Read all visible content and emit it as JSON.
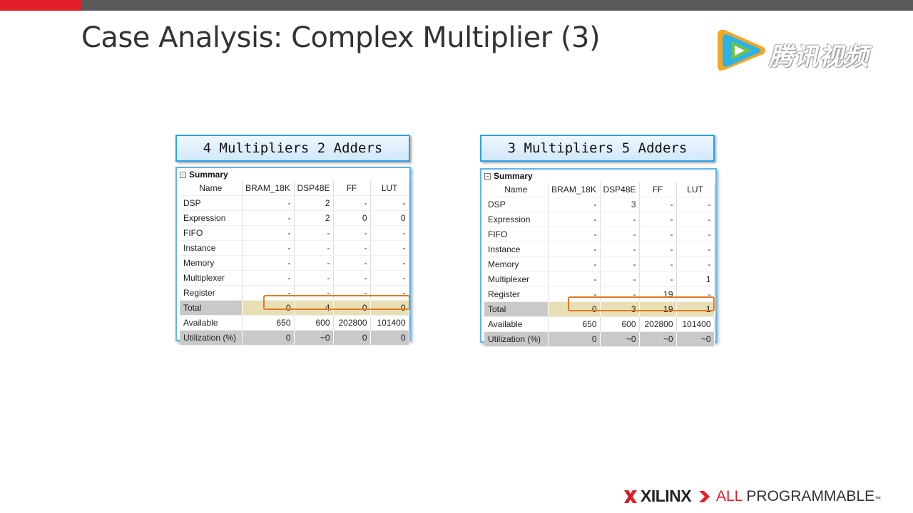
{
  "slide": {
    "title": "Case Analysis: Complex Multiplier (3)"
  },
  "brand": {
    "watermark_text": "腾讯视频",
    "footer_company": "XILINX",
    "footer_tag_all": "ALL",
    "footer_tag_rest": " PROGRAMMABLE",
    "footer_tm": "™",
    "colors": {
      "accent_red": "#e3202a",
      "topbar": "#5b5b5b",
      "highlight": "#e07a22",
      "box_border": "#2aa2e3"
    }
  },
  "panels": [
    {
      "label": "4 Multipliers 2 Adders",
      "summary_title": "Summary",
      "columns": [
        "Name",
        "BRAM_18K",
        "DSP48E",
        "FF",
        "LUT"
      ],
      "rows": [
        [
          "DSP",
          "-",
          "2",
          "-",
          "-"
        ],
        [
          "Expression",
          "-",
          "2",
          "0",
          "0"
        ],
        [
          "FIFO",
          "-",
          "-",
          "-",
          "-"
        ],
        [
          "Instance",
          "-",
          "-",
          "-",
          "-"
        ],
        [
          "Memory",
          "-",
          "-",
          "-",
          "-"
        ],
        [
          "Multiplexer",
          "-",
          "-",
          "-",
          "-"
        ],
        [
          "Register",
          "-",
          "-",
          "-",
          "-"
        ]
      ],
      "total": [
        "Total",
        "0",
        "4",
        "0",
        "0"
      ],
      "available": [
        "Available",
        "650",
        "600",
        "202800",
        "101400"
      ],
      "utilization": [
        "Utilization (%)",
        "0",
        "~0",
        "0",
        "0"
      ]
    },
    {
      "label": "3 Multipliers 5 Adders",
      "summary_title": "Summary",
      "columns": [
        "Name",
        "BRAM_18K",
        "DSP48E",
        "FF",
        "LUT"
      ],
      "rows": [
        [
          "DSP",
          "-",
          "3",
          "-",
          "-"
        ],
        [
          "Expression",
          "-",
          "-",
          "-",
          "-"
        ],
        [
          "FIFO",
          "-",
          "-",
          "-",
          "-"
        ],
        [
          "Instance",
          "-",
          "-",
          "-",
          "-"
        ],
        [
          "Memory",
          "-",
          "-",
          "-",
          "-"
        ],
        [
          "Multiplexer",
          "-",
          "-",
          "-",
          "1"
        ],
        [
          "Register",
          "-",
          "-",
          "19",
          "-"
        ]
      ],
      "total": [
        "Total",
        "0",
        "3",
        "19",
        "1"
      ],
      "available": [
        "Available",
        "650",
        "600",
        "202800",
        "101400"
      ],
      "utilization": [
        "Utilization (%)",
        "0",
        "~0",
        "~0",
        "~0"
      ]
    }
  ]
}
